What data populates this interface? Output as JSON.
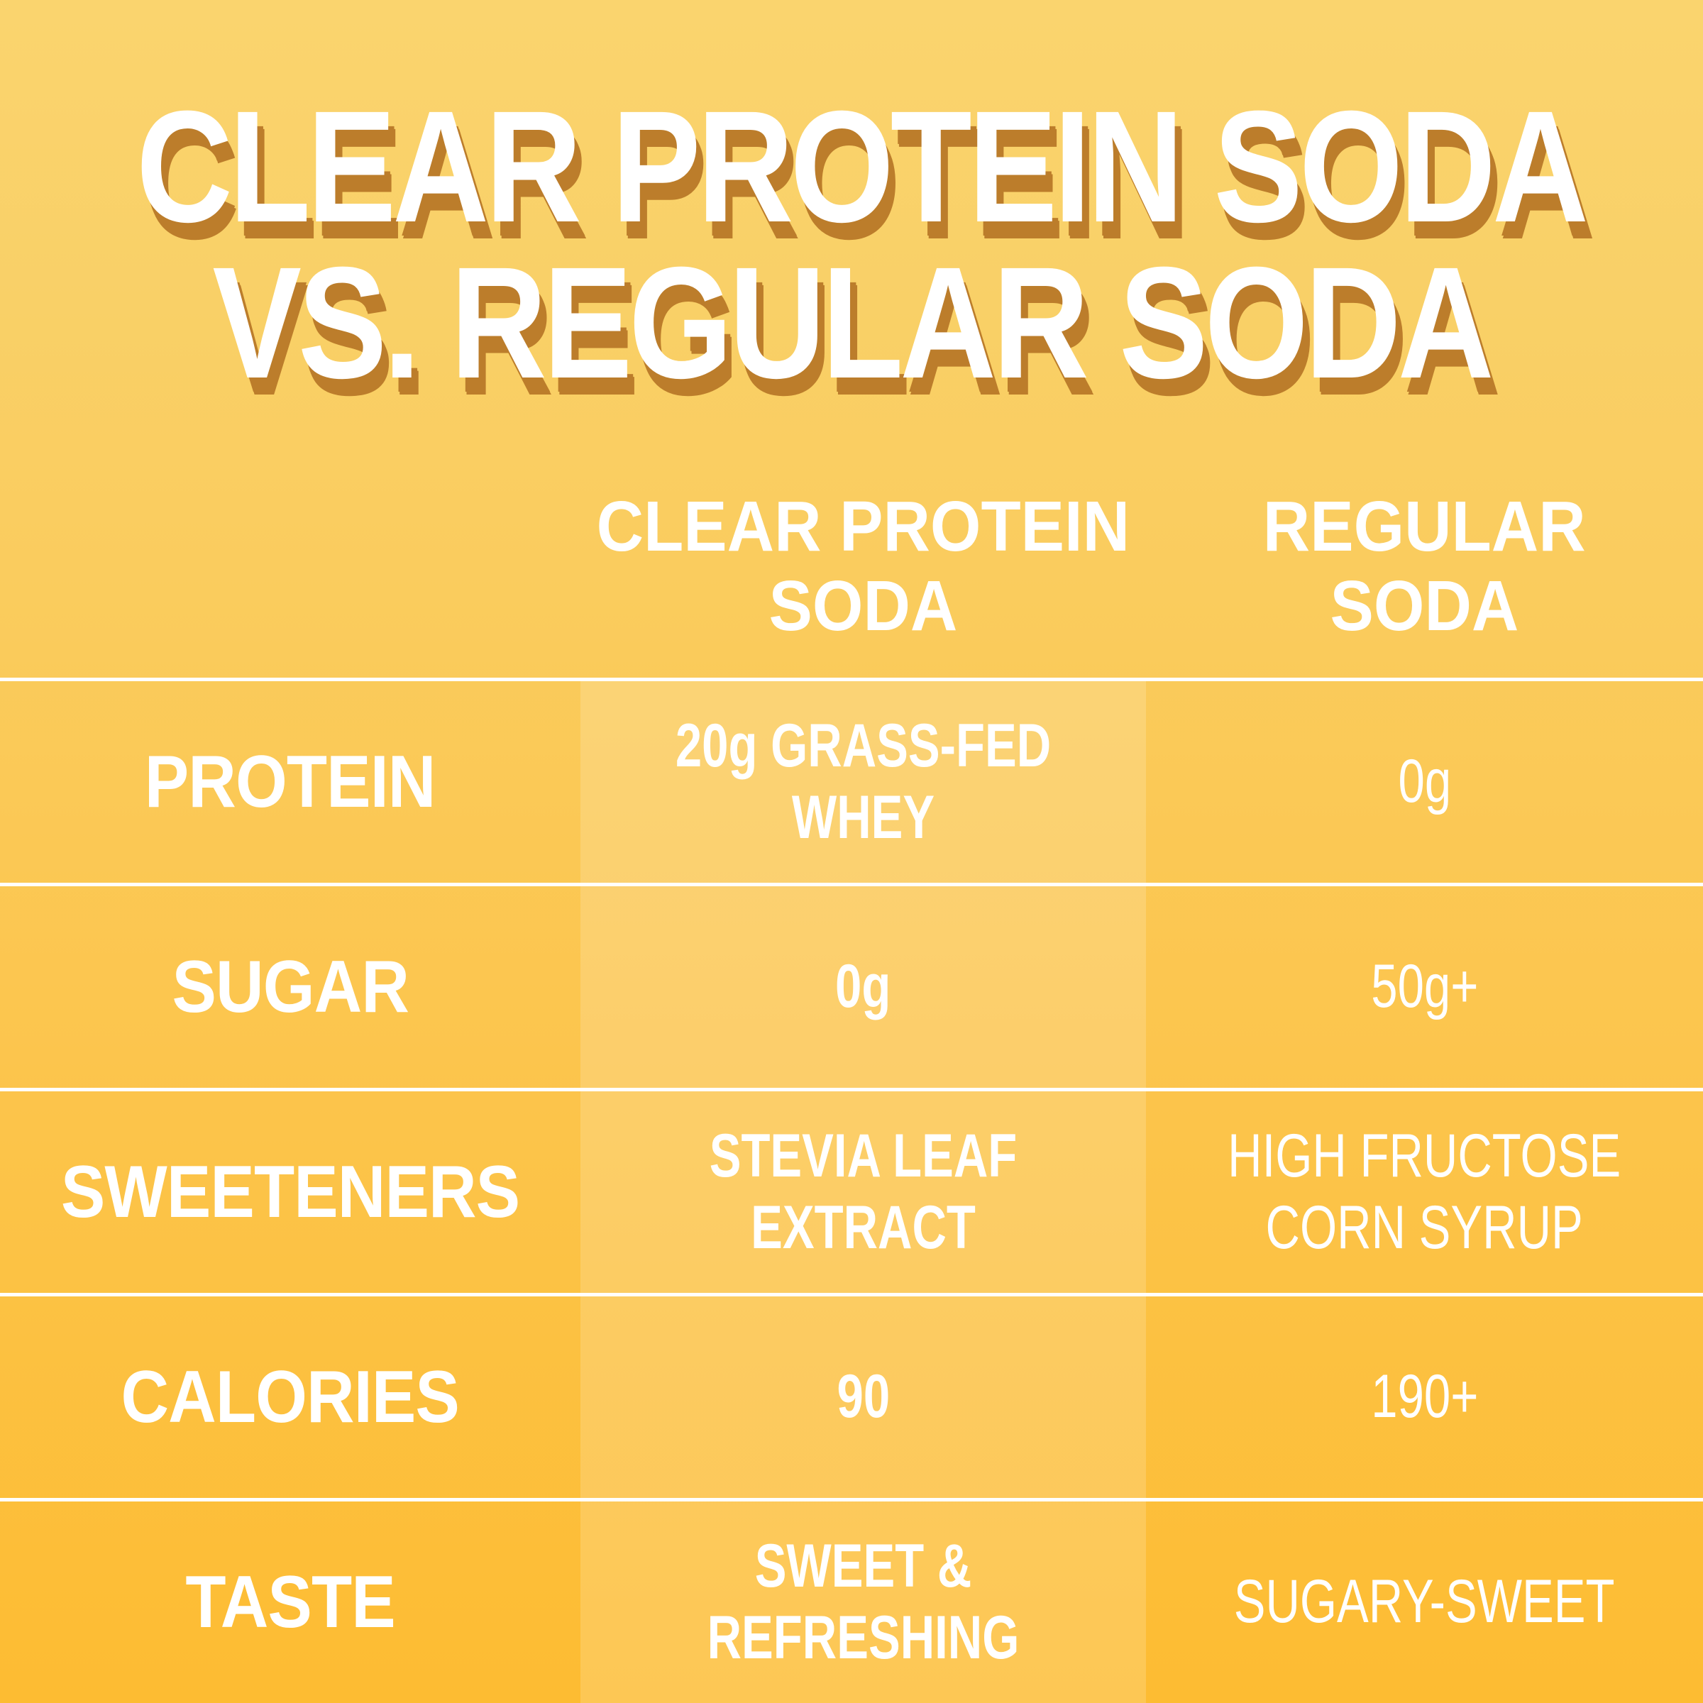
{
  "title": {
    "line1": "CLEAR PROTEIN SODA",
    "line2": "VS. REGULAR SODA"
  },
  "table": {
    "column_headers": [
      {
        "line1": "CLEAR PROTEIN",
        "line2": "SODA"
      },
      {
        "line1": "REGULAR",
        "line2": "SODA"
      }
    ],
    "rows": [
      {
        "label": "PROTEIN",
        "clear_protein_soda": "20g GRASS-FED WHEY",
        "regular_soda": "0g"
      },
      {
        "label": "SUGAR",
        "clear_protein_soda": "0g",
        "regular_soda": "50g+"
      },
      {
        "label": "SWEETENERS",
        "clear_protein_soda": "STEVIA LEAF EXTRACT",
        "regular_soda": "HIGH FRUCTOSE\nCORN SYRUP"
      },
      {
        "label": "CALORIES",
        "clear_protein_soda": "90",
        "regular_soda": "190+"
      },
      {
        "label": "TASTE",
        "clear_protein_soda": "SWEET & REFRESHING",
        "regular_soda": "SUGARY-SWEET"
      }
    ]
  },
  "colors": {
    "background_top": "#FAD46E",
    "background_bottom": "#FDBC32",
    "title_text": "#FFFFFF",
    "title_shadow": "#BC7D2B",
    "table_text": "#FFFFFF",
    "separator_line": "#FFFFFF",
    "highlight_column_overlay": "rgba(255,255,255,0.17)"
  },
  "chart_data": {
    "type": "table",
    "title": "CLEAR PROTEIN SODA VS. REGULAR SODA",
    "columns": [
      "",
      "CLEAR PROTEIN SODA",
      "REGULAR SODA"
    ],
    "rows": [
      [
        "PROTEIN",
        "20g GRASS-FED WHEY",
        "0g"
      ],
      [
        "SUGAR",
        "0g",
        "50g+"
      ],
      [
        "SWEETENERS",
        "STEVIA LEAF EXTRACT",
        "HIGH FRUCTOSE CORN SYRUP"
      ],
      [
        "CALORIES",
        "90",
        "190+"
      ],
      [
        "TASTE",
        "SWEET & REFRESHING",
        "SUGARY-SWEET"
      ]
    ],
    "legend_position": "none",
    "grid": "horizontal-separators",
    "highlighted_column": "CLEAR PROTEIN SODA"
  }
}
